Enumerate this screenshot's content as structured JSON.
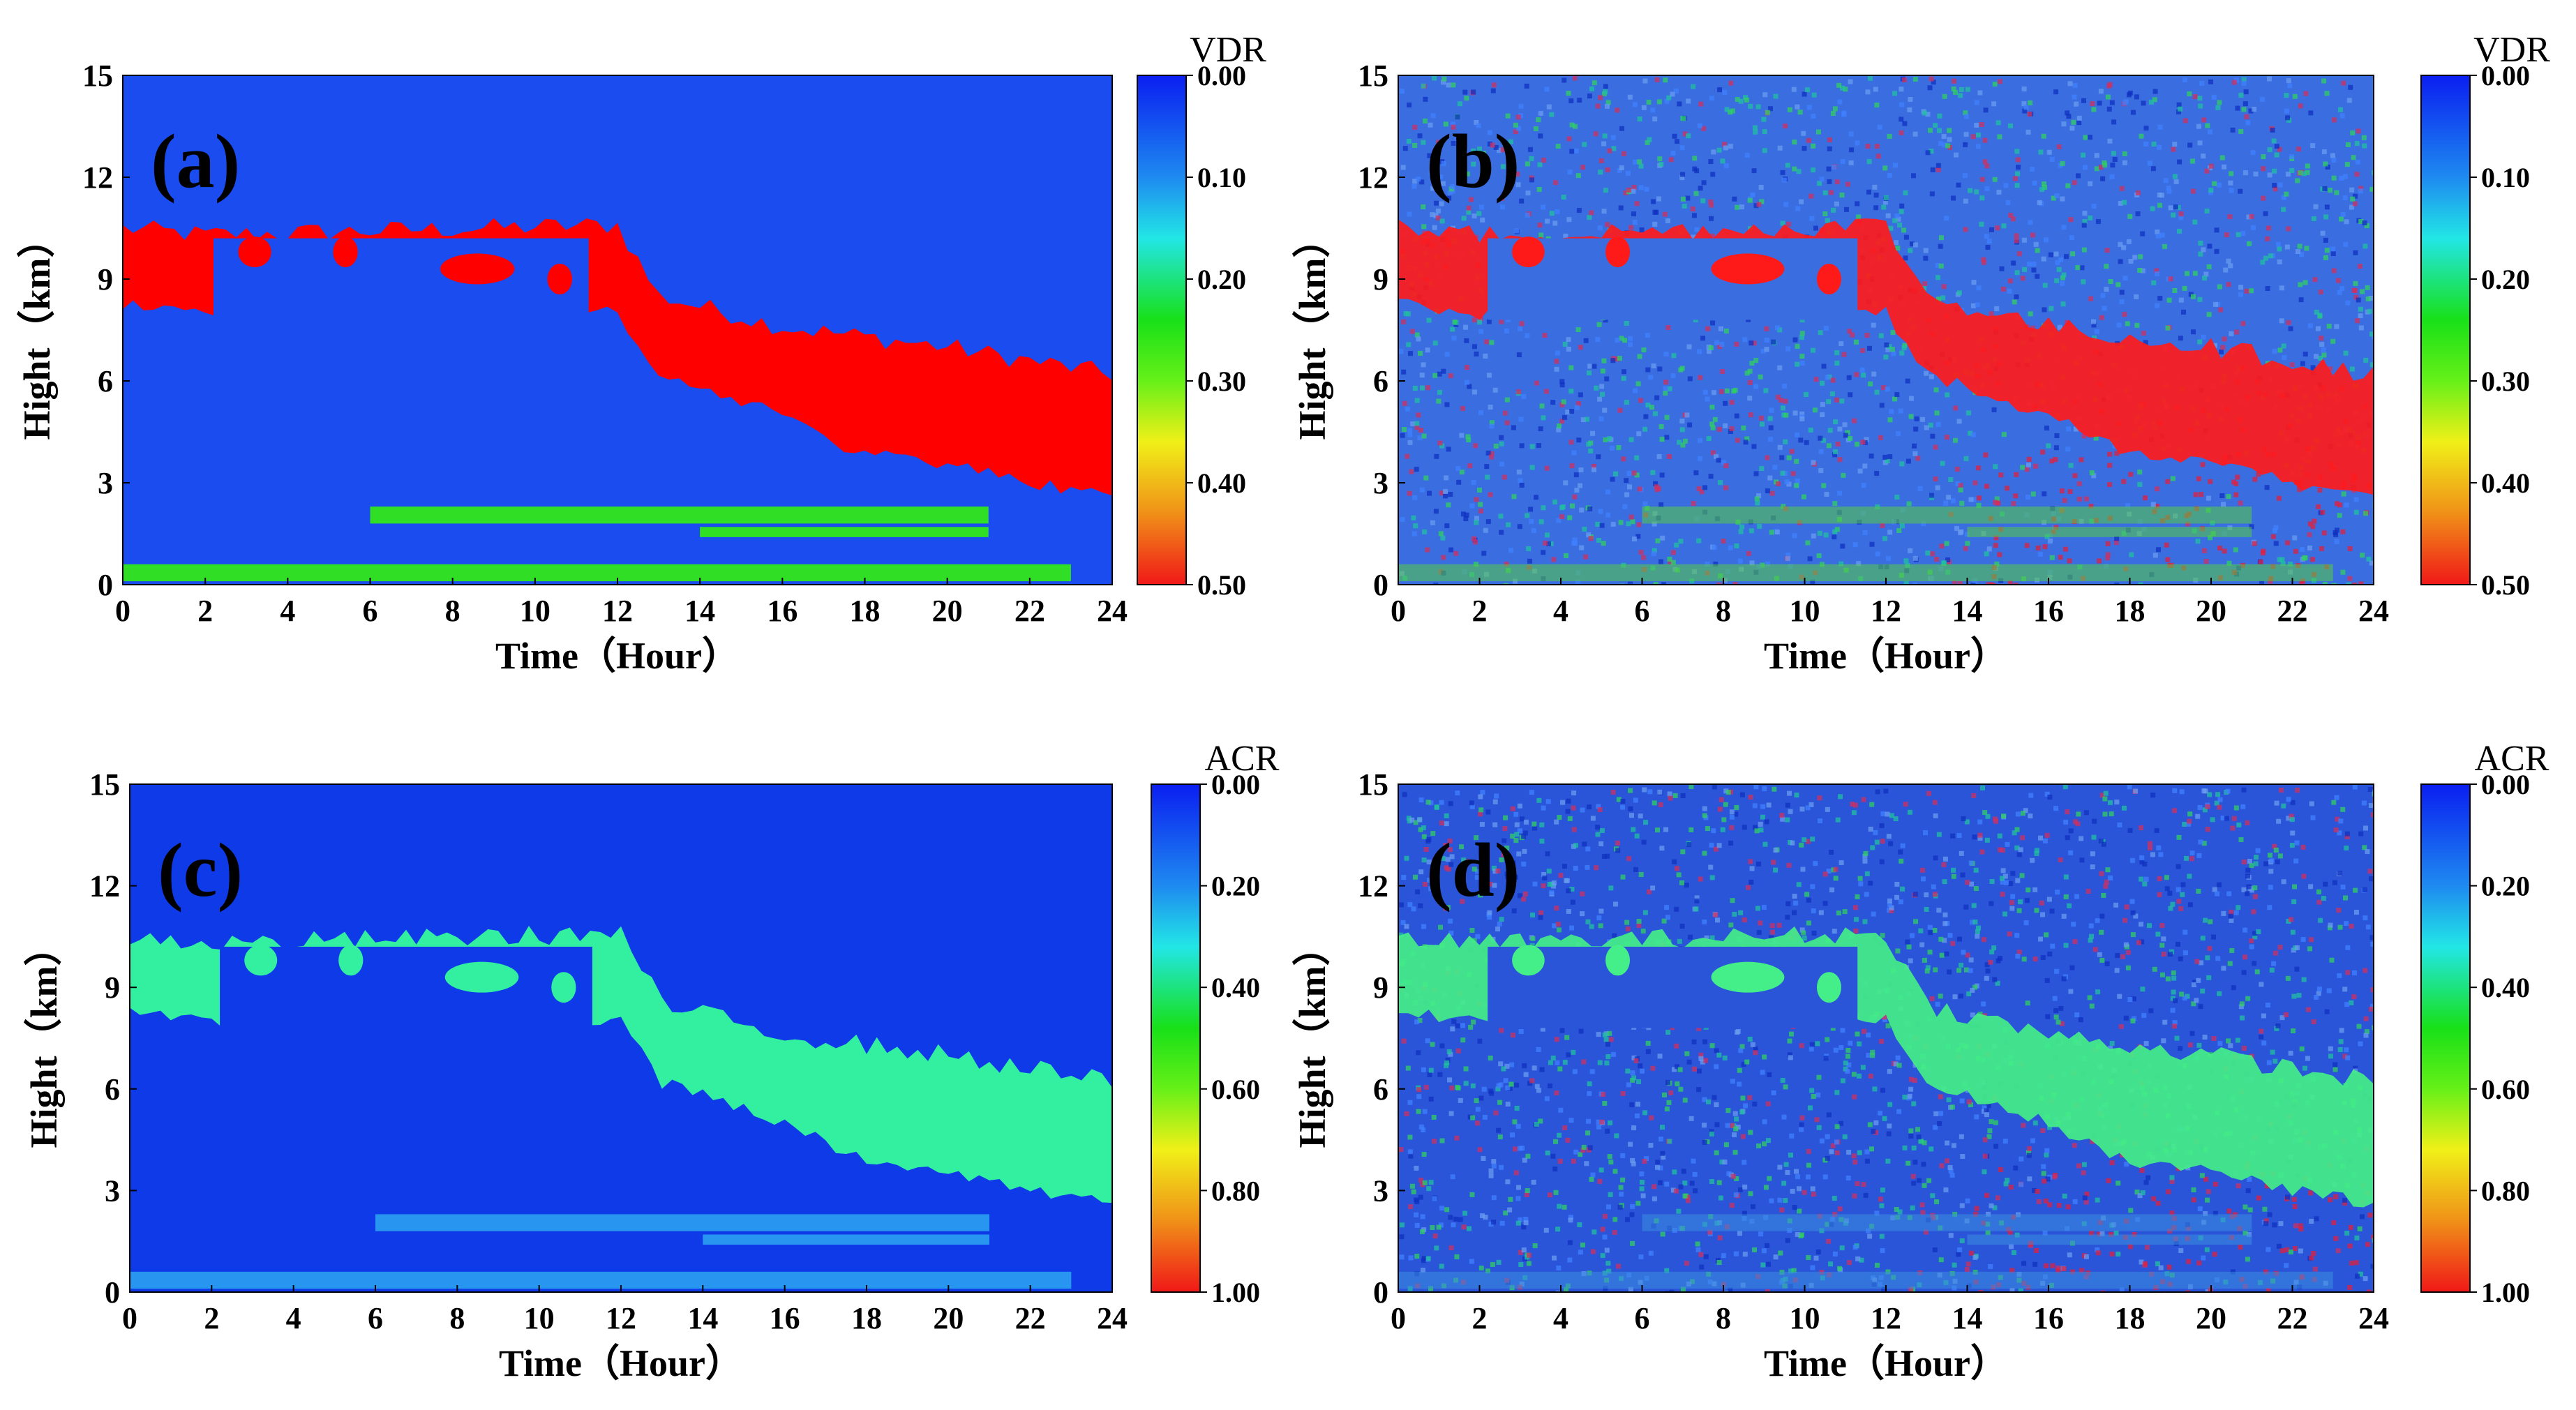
{
  "chart_data": [
    {
      "type": "heatmap",
      "panel_label": "(a)",
      "colorbar_title": "VDR",
      "colorbar_ticks": [
        "0.00",
        "0.10",
        "0.20",
        "0.30",
        "0.40",
        "0.50"
      ],
      "xlabel": "Time（Hour）",
      "ylabel": "Hight（km）",
      "xlim": [
        0,
        24
      ],
      "ylim": [
        0,
        15
      ],
      "xticks": [
        "0",
        "2",
        "4",
        "6",
        "8",
        "10",
        "12",
        "14",
        "16",
        "18",
        "20",
        "22",
        "24"
      ],
      "yticks": [
        "0",
        "3",
        "6",
        "9",
        "12",
        "15"
      ],
      "noisy": false,
      "colors": {
        "background": "#1a4cf0",
        "cloud": "#ff0000",
        "aerosol": "#33e61a",
        "edge": "#66ff33"
      }
    },
    {
      "type": "heatmap",
      "panel_label": "(b)",
      "colorbar_title": "VDR",
      "colorbar_ticks": [
        "0.00",
        "0.10",
        "0.20",
        "0.30",
        "0.40",
        "0.50"
      ],
      "xlabel": "Time（Hour）",
      "ylabel": "Hight（km）",
      "xlim": [
        0,
        24
      ],
      "ylim": [
        0,
        15
      ],
      "xticks": [
        "0",
        "2",
        "4",
        "6",
        "8",
        "10",
        "12",
        "14",
        "16",
        "18",
        "20",
        "22",
        "24"
      ],
      "yticks": [
        "0",
        "3",
        "6",
        "9",
        "12",
        "15"
      ],
      "noisy": true,
      "colors": {
        "background": "#3a6ee0",
        "cloud": "#ff1a1a",
        "aerosol": "#55cc44",
        "edge": "#66ff33"
      }
    },
    {
      "type": "heatmap",
      "panel_label": "(c)",
      "colorbar_title": "ACR",
      "colorbar_ticks": [
        "0.00",
        "0.20",
        "0.40",
        "0.60",
        "0.80",
        "1.00"
      ],
      "xlabel": "Time（Hour）",
      "ylabel": "Hight（km）",
      "xlim": [
        0,
        24
      ],
      "ylim": [
        0,
        15
      ],
      "xticks": [
        "0",
        "2",
        "4",
        "6",
        "8",
        "10",
        "12",
        "14",
        "16",
        "18",
        "20",
        "22",
        "24"
      ],
      "yticks": [
        "0",
        "3",
        "6",
        "9",
        "12",
        "15"
      ],
      "noisy": false,
      "colors": {
        "background": "#0f3ae8",
        "cloud": "#33f0a0",
        "aerosol": "#2a9af0",
        "edge": "#1e5ff0"
      }
    },
    {
      "type": "heatmap",
      "panel_label": "(d)",
      "colorbar_title": "ACR",
      "colorbar_ticks": [
        "0.00",
        "0.20",
        "0.40",
        "0.60",
        "0.80",
        "1.00"
      ],
      "xlabel": "Time（Hour）",
      "ylabel": "Hight（km）",
      "xlim": [
        0,
        24
      ],
      "ylim": [
        0,
        15
      ],
      "xticks": [
        "0",
        "2",
        "4",
        "6",
        "8",
        "10",
        "12",
        "14",
        "16",
        "18",
        "20",
        "22",
        "24"
      ],
      "yticks": [
        "0",
        "3",
        "6",
        "9",
        "12",
        "15"
      ],
      "noisy": true,
      "colors": {
        "background": "#2a55d8",
        "cloud": "#44ee88",
        "aerosol": "#3a8ce0",
        "edge": "#2a66e0"
      }
    }
  ],
  "features": {
    "cirrus_cloud_top_km": [
      [
        0,
        10.5
      ],
      [
        2,
        10.3
      ],
      [
        12,
        10.6
      ],
      [
        13,
        8.5
      ],
      [
        16,
        7.6
      ],
      [
        20,
        7.0
      ],
      [
        24,
        6.2
      ]
    ],
    "cirrus_cloud_base_km": [
      [
        0,
        8.3
      ],
      [
        2,
        8.0
      ],
      [
        12,
        8.0
      ],
      [
        13,
        6.2
      ],
      [
        16,
        5.0
      ],
      [
        18,
        3.8
      ],
      [
        20,
        3.6
      ],
      [
        22,
        3.0
      ],
      [
        24,
        2.6
      ]
    ],
    "aerosol_layers_km": [
      {
        "t_start": 0,
        "t_end": 23,
        "z_low": 0.1,
        "z_high": 0.6
      },
      {
        "t_start": 6,
        "t_end": 21,
        "z_low": 1.8,
        "z_high": 2.3
      },
      {
        "t_start": 14,
        "t_end": 21,
        "z_low": 1.4,
        "z_high": 1.7
      }
    ]
  }
}
